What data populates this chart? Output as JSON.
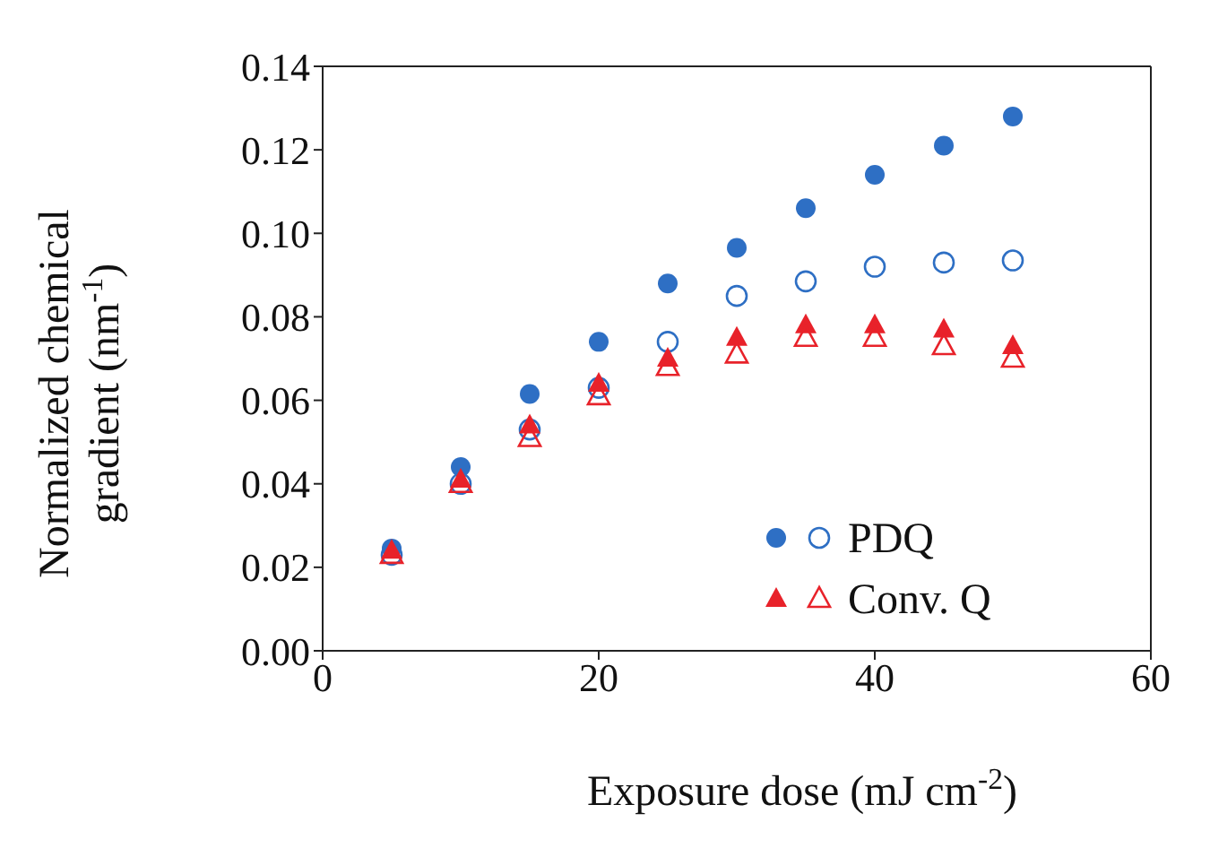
{
  "chart_data": {
    "type": "scatter",
    "xlabel": "Exposure dose (mJ cm$^{-2}$)",
    "ylabel": "Normalized chemical\ngradient (nm$^{-1}$)",
    "x": [
      5,
      10,
      15,
      20,
      25,
      30,
      35,
      40,
      45,
      50
    ],
    "series": [
      {
        "name": "PDQ",
        "color": "#2e6fc4",
        "marker": "circle",
        "values": [
          0.0245,
          0.044,
          0.0615,
          0.074,
          0.088,
          0.0965,
          0.106,
          0.114,
          0.121,
          0.128
        ]
      },
      {
        "color": "#2e6fc4",
        "marker": "circle-open",
        "values": [
          0.023,
          0.04,
          0.053,
          0.063,
          0.074,
          0.085,
          0.0885,
          0.092,
          0.093,
          0.0935
        ]
      },
      {
        "name": "Conv. Q",
        "color": "#e8222a",
        "marker": "triangle",
        "values": [
          0.024,
          0.041,
          0.054,
          0.064,
          0.07,
          0.075,
          0.078,
          0.078,
          0.077,
          0.073
        ]
      },
      {
        "color": "#e8222a",
        "marker": "triangle-open",
        "values": [
          0.023,
          0.04,
          0.051,
          0.061,
          0.068,
          0.071,
          0.075,
          0.075,
          0.073,
          0.07
        ]
      }
    ],
    "xlim": [
      0,
      60
    ],
    "xticks": [
      0,
      20,
      40,
      60
    ],
    "ylim": [
      0,
      0.14
    ],
    "yticks": [
      {
        "value": 0,
        "label": "0.00"
      },
      {
        "value": 0.02,
        "label": "0.02"
      },
      {
        "value": 0.04,
        "label": "0.04"
      },
      {
        "value": 0.06,
        "label": "0.06"
      },
      {
        "value": 0.08,
        "label": "0.08"
      },
      {
        "value": 0.1,
        "label": "0.10"
      },
      {
        "value": 0.12,
        "label": "0.12"
      },
      {
        "value": 0.14,
        "label": "0.14"
      }
    ],
    "legend": "bottom right"
  }
}
